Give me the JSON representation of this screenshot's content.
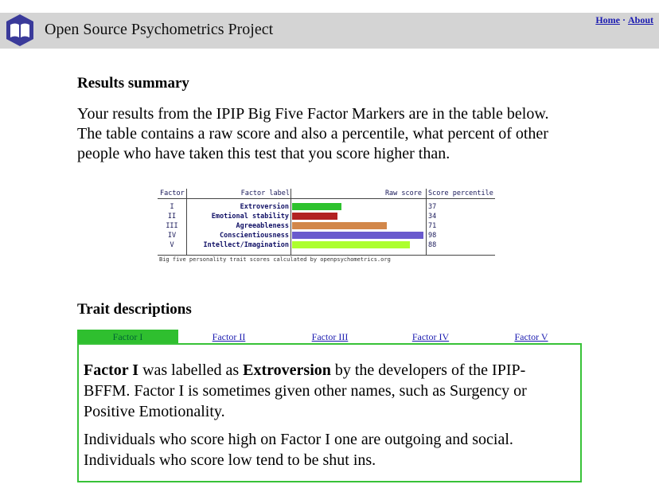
{
  "header": {
    "site_title": "Open Source Psychometrics Project",
    "nav": {
      "home": "Home",
      "separator": "·",
      "about": "About"
    },
    "logo_icon": "open-book-icon",
    "logo_color": "#3a3a9a"
  },
  "results_summary": {
    "heading": "Results summary",
    "intro": "Your results from the IPIP Big Five Factor Markers are in the table below. The table contains a raw score and also a percentile, what percent of other people who have taken this test that you score higher than."
  },
  "results_table": {
    "headers": {
      "factor": "Factor",
      "factor_label": "Factor label",
      "raw_score": "Raw score",
      "score_percentile": "Score percentile"
    },
    "rows": [
      {
        "factor": "I",
        "label": "Extroversion",
        "percentile": "37",
        "value": 37,
        "color": "#2ec22e"
      },
      {
        "factor": "II",
        "label": "Emotional stability",
        "percentile": "34",
        "value": 34,
        "color": "#b22222"
      },
      {
        "factor": "III",
        "label": "Agreeableness",
        "percentile": "71",
        "value": 71,
        "color": "#d2874a"
      },
      {
        "factor": "IV",
        "label": "Conscientiousness",
        "percentile": "98",
        "value": 98,
        "color": "#6a5acd"
      },
      {
        "factor": "V",
        "label": "Intellect/Imagination",
        "percentile": "88",
        "value": 88,
        "color": "#adff2f"
      }
    ],
    "caption": "Big five personality trait scores calculated by openpsychometrics.org"
  },
  "trait_descriptions": {
    "heading": "Trait descriptions",
    "tabs": [
      "Factor I",
      "Factor II",
      "Factor III",
      "Factor IV",
      "Factor V"
    ],
    "active_tab": "Factor I",
    "active_color": "#2fbf2f",
    "paragraph1": {
      "factor": "Factor I",
      "part1": " was labelled as ",
      "label": "Extroversion",
      "part2": " by the developers of the IPIP-BFFM. Factor I is sometimes given other names, such as Surgency or Positive Emotionality."
    },
    "paragraph2": "Individuals who score high on Factor I one are outgoing and social. Individuals who score low tend to be shut ins."
  }
}
